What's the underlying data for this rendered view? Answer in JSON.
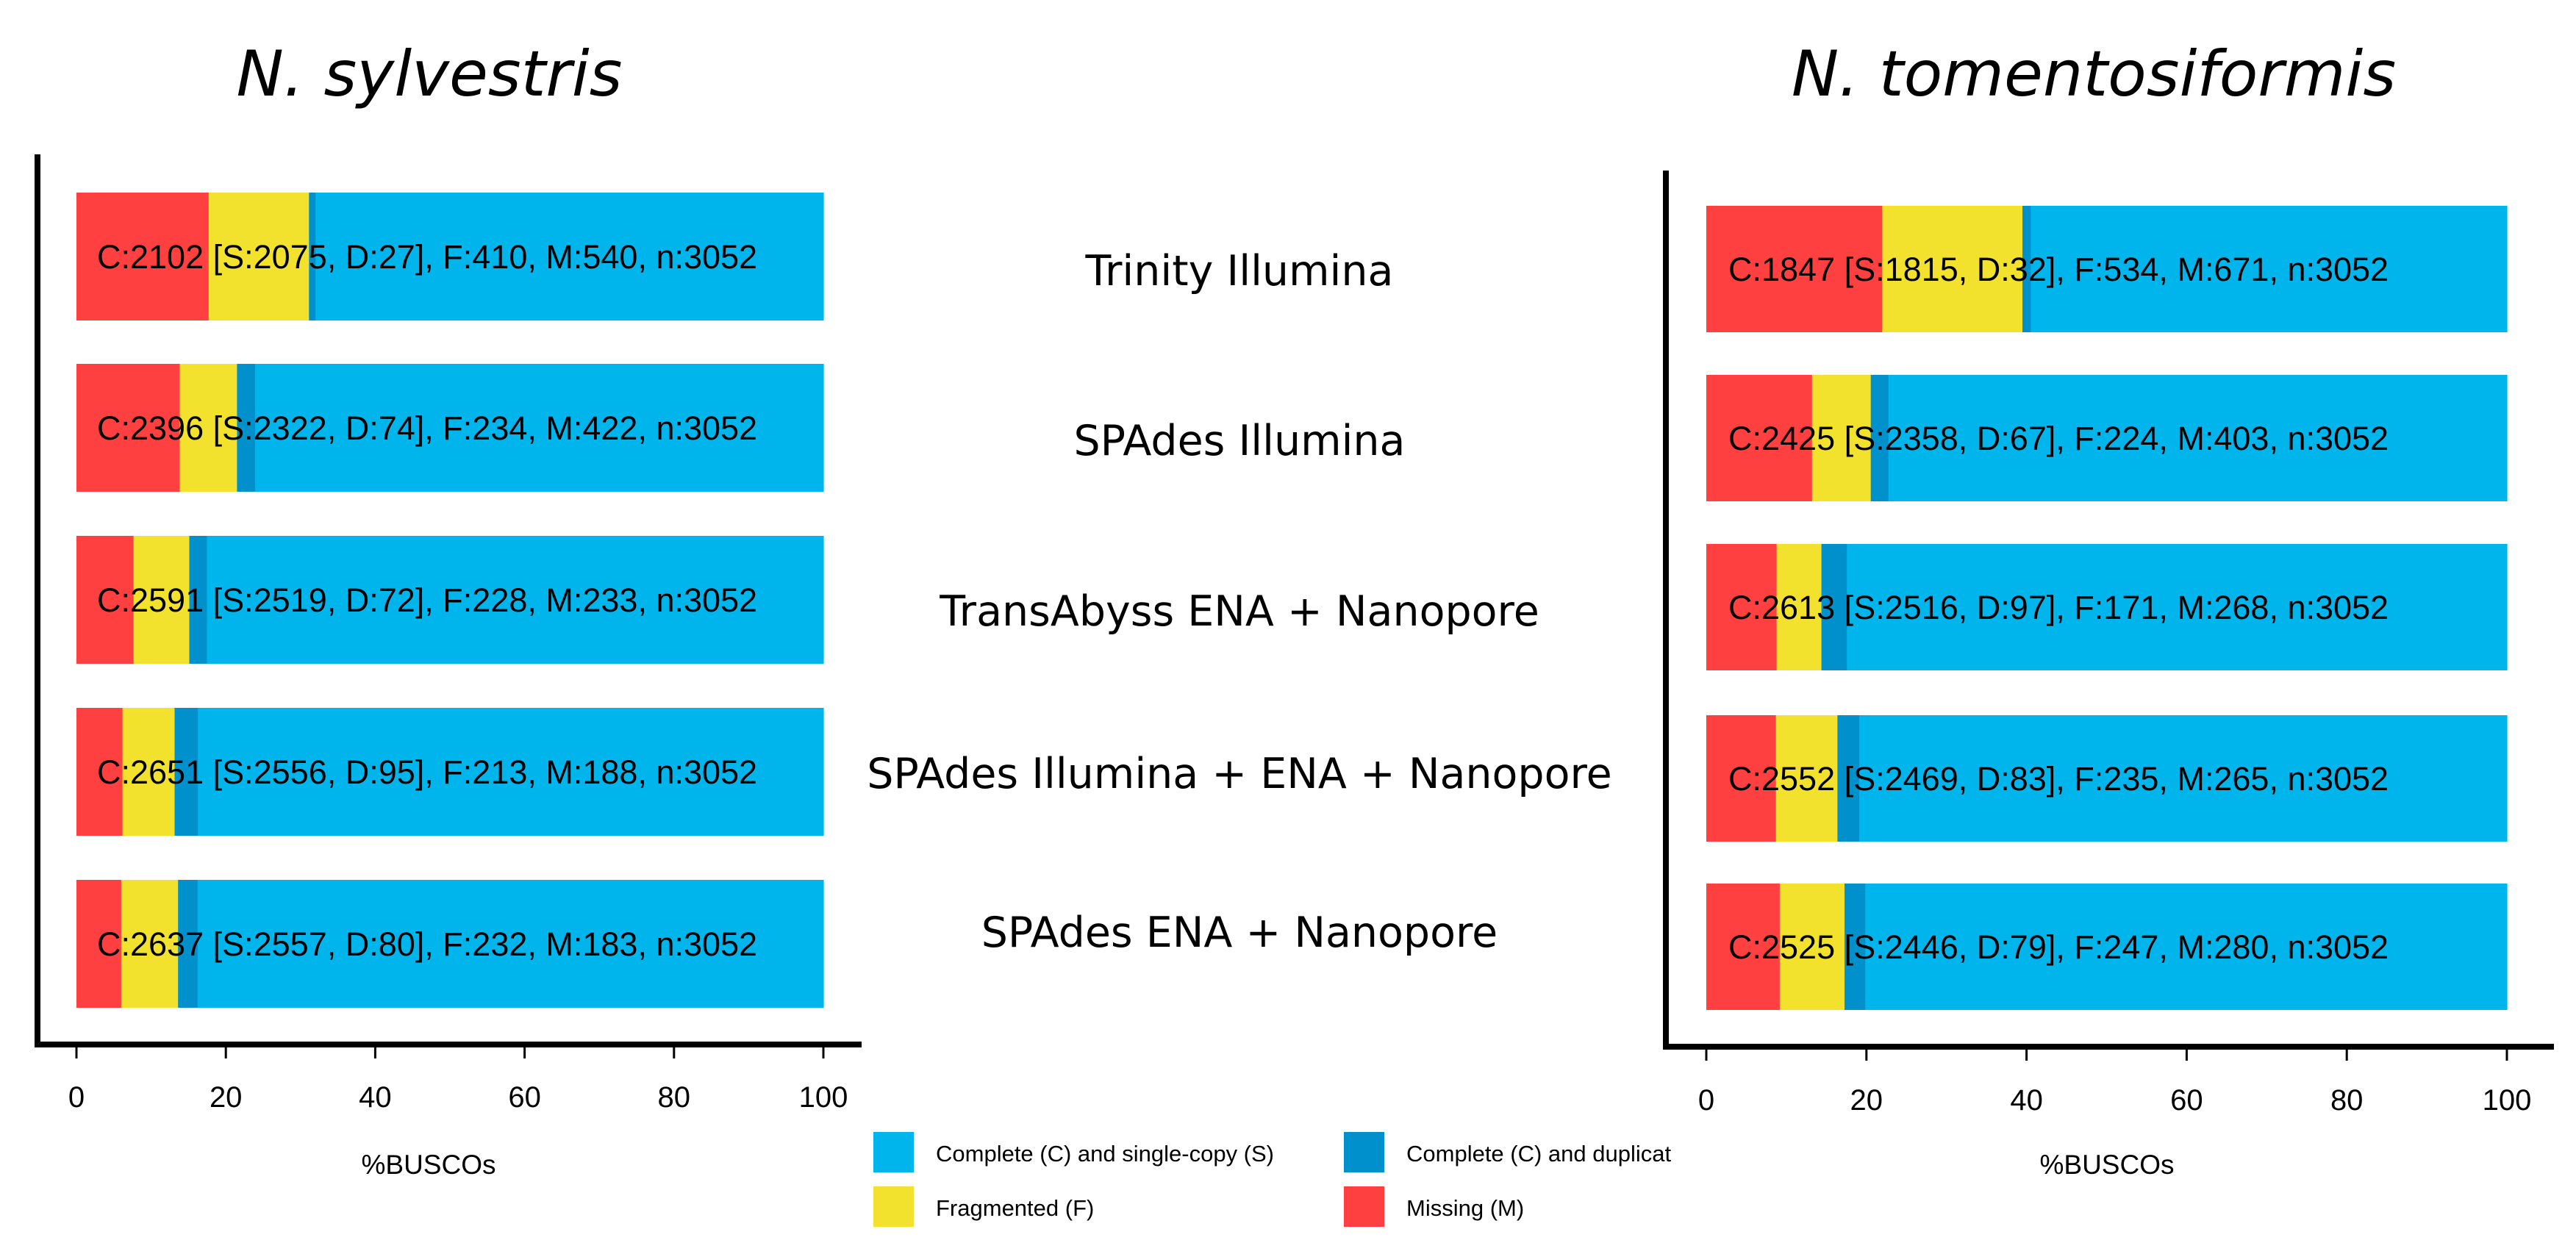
{
  "colors": {
    "single": "#00b5eb",
    "duplicated": "#0090cb",
    "fragmented": "#f2e22e",
    "missing": "#ff4040",
    "axis": "#000000"
  },
  "categories": [
    "Trinity Illumina",
    "SPAdes Illumina",
    "TransAbyss ENA + Nanopore",
    "SPAdes Illumina + ENA + Nanopore",
    "SPAdes ENA + Nanopore"
  ],
  "legend": {
    "single": "Complete (C) and single-copy (S)",
    "duplicated": "Complete (C) and duplicat",
    "fragmented": "Fragmented (F)",
    "missing": "Missing (M)"
  },
  "chart_data": [
    {
      "type": "bar",
      "stacked": true,
      "orientation": "horizontal",
      "title": "N. sylvestris",
      "xlabel": "%BUSCOs",
      "xlim": [
        0,
        100
      ],
      "ticks": [
        "0",
        "20",
        "40",
        "60",
        "80",
        "100"
      ],
      "series_order": [
        "missing",
        "fragmented",
        "duplicated",
        "single"
      ],
      "bars": [
        {
          "label": "C:2102 [S:2075, D:27], F:410, M:540, n:3052",
          "missing": 540,
          "fragmented": 410,
          "duplicated": 27,
          "single": 2075,
          "n": 3052
        },
        {
          "label": "C:2396 [S:2322, D:74], F:234, M:422, n:3052",
          "missing": 422,
          "fragmented": 234,
          "duplicated": 74,
          "single": 2322,
          "n": 3052
        },
        {
          "label": "C:2591 [S:2519, D:72], F:228, M:233, n:3052",
          "missing": 233,
          "fragmented": 228,
          "duplicated": 72,
          "single": 2519,
          "n": 3052
        },
        {
          "label": "C:2651 [S:2556, D:95], F:213, M:188, n:3052",
          "missing": 188,
          "fragmented": 213,
          "duplicated": 95,
          "single": 2556,
          "n": 3052
        },
        {
          "label": "C:2637 [S:2557, D:80], F:232, M:183, n:3052",
          "missing": 183,
          "fragmented": 232,
          "duplicated": 80,
          "single": 2557,
          "n": 3052
        }
      ]
    },
    {
      "type": "bar",
      "stacked": true,
      "orientation": "horizontal",
      "title": "N. tomentosiformis",
      "xlabel": "%BUSCOs",
      "xlim": [
        0,
        100
      ],
      "ticks": [
        "0",
        "20",
        "40",
        "60",
        "80",
        "100"
      ],
      "series_order": [
        "missing",
        "fragmented",
        "duplicated",
        "single"
      ],
      "bars": [
        {
          "label": "C:1847 [S:1815, D:32], F:534, M:671, n:3052",
          "missing": 671,
          "fragmented": 534,
          "duplicated": 32,
          "single": 1815,
          "n": 3052
        },
        {
          "label": "C:2425 [S:2358, D:67], F:224, M:403, n:3052",
          "missing": 403,
          "fragmented": 224,
          "duplicated": 67,
          "single": 2358,
          "n": 3052
        },
        {
          "label": "C:2613 [S:2516, D:97], F:171, M:268, n:3052",
          "missing": 268,
          "fragmented": 171,
          "duplicated": 97,
          "single": 2516,
          "n": 3052
        },
        {
          "label": "C:2552 [S:2469, D:83], F:235, M:265, n:3052",
          "missing": 265,
          "fragmented": 235,
          "duplicated": 83,
          "single": 2469,
          "n": 3052
        },
        {
          "label": "C:2525 [S:2446, D:79], F:247, M:280, n:3052",
          "missing": 280,
          "fragmented": 247,
          "duplicated": 79,
          "single": 2446,
          "n": 3052
        }
      ]
    }
  ]
}
